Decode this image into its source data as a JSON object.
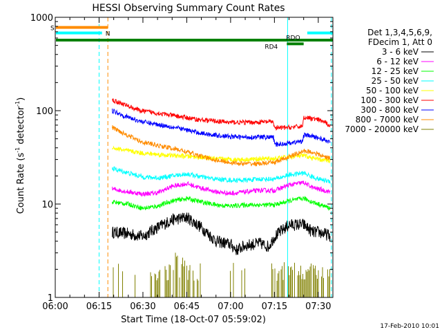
{
  "chart_data": {
    "type": "line",
    "title": "HESSI Observing Summary Count Rates",
    "xlabel": "Start Time (18-Oct-07 05:59:02)",
    "ylabel": "Count Rate (s⁻¹ detector⁻¹)",
    "ylabel_parts": [
      "Count Rate (s",
      "-1",
      " detector",
      "-1",
      ")"
    ],
    "yscale": "log",
    "ylim": [
      1,
      1000
    ],
    "xlim_min": [
      0,
      95
    ],
    "x_ticks": [
      {
        "min": 0,
        "label": "06:00"
      },
      {
        "min": 15,
        "label": "06:15"
      },
      {
        "min": 30,
        "label": "06:30"
      },
      {
        "min": 45,
        "label": "06:45"
      },
      {
        "min": 60,
        "label": "07:00"
      },
      {
        "min": 75,
        "label": "07:15"
      },
      {
        "min": 90,
        "label": "07:30"
      }
    ],
    "y_ticks": [
      {
        "value": 1,
        "label": "1"
      },
      {
        "value": 10,
        "label": "10"
      },
      {
        "value": 100,
        "label": "100"
      },
      {
        "value": 1000,
        "label": "1000"
      }
    ],
    "legend_header": [
      "Det 1,3,4,5,6,9,",
      "FDecim 1, Att 0"
    ],
    "series": [
      {
        "name": "3 - 6 keV",
        "color": "#000000",
        "noise": 0.13,
        "x": [
          19.5,
          25,
          30,
          33,
          40,
          45,
          50,
          55,
          60,
          62,
          65,
          70,
          73,
          75,
          80,
          85,
          88,
          90,
          94
        ],
        "y": [
          5.0,
          4.8,
          4.5,
          5.2,
          6.8,
          7.2,
          5.6,
          4.0,
          3.7,
          3.2,
          3.6,
          3.8,
          3.5,
          4.5,
          6.0,
          6.0,
          5.0,
          5.0,
          4.6
        ]
      },
      {
        "name": "6 - 12 keV",
        "color": "#ff00ff",
        "x": [
          19.5,
          25,
          30,
          35,
          40,
          45,
          50,
          55,
          60,
          65,
          70,
          73,
          75,
          80,
          85,
          88,
          90,
          94
        ],
        "y": [
          14.5,
          13.5,
          12.8,
          13.2,
          15.5,
          16.5,
          14.8,
          13.5,
          13.0,
          13.5,
          14.0,
          14.0,
          14.0,
          16.0,
          17.0,
          15.0,
          14.5,
          13.5
        ]
      },
      {
        "name": "12 - 25 keV",
        "color": "#00ff00",
        "x": [
          19.5,
          25,
          30,
          35,
          40,
          45,
          50,
          55,
          60,
          65,
          70,
          73,
          75,
          80,
          85,
          88,
          90,
          94
        ],
        "y": [
          10.5,
          10.0,
          9.0,
          9.5,
          10.8,
          11.5,
          10.5,
          9.8,
          9.5,
          9.8,
          9.8,
          9.8,
          9.8,
          10.8,
          11.5,
          10.5,
          10.0,
          9.0
        ]
      },
      {
        "name": "25 - 50 keV",
        "color": "#00ffff",
        "x": [
          19.5,
          25,
          30,
          35,
          40,
          45,
          50,
          55,
          60,
          65,
          70,
          73,
          75,
          80,
          85,
          88,
          90,
          94
        ],
        "y": [
          24.0,
          21.5,
          19.5,
          19.0,
          20.0,
          21.0,
          19.5,
          18.5,
          18.0,
          18.0,
          18.5,
          18.5,
          18.5,
          20.5,
          21.5,
          19.5,
          18.5,
          17.5
        ]
      },
      {
        "name": "50 - 100 keV",
        "color": "#ffff00",
        "x": [
          19.5,
          25,
          30,
          35,
          40,
          45,
          50,
          55,
          60,
          65,
          70,
          73,
          75,
          80,
          85,
          88,
          90,
          94
        ],
        "y": [
          40.0,
          37.0,
          35.0,
          34.0,
          33.0,
          32.5,
          31.5,
          30.5,
          30.0,
          30.0,
          30.5,
          30.5,
          30.5,
          32.0,
          33.0,
          31.0,
          30.0,
          29.0
        ]
      },
      {
        "name": "100 - 300 keV",
        "color": "#ff0000",
        "x": [
          19.5,
          24,
          29,
          34,
          39,
          44,
          49,
          54,
          59,
          64,
          69,
          73,
          74.6,
          75,
          80,
          84.5,
          85,
          88,
          91,
          94
        ],
        "y": [
          130,
          115,
          100,
          95,
          90,
          85,
          80,
          78,
          75,
          75,
          75,
          76,
          76,
          65,
          66,
          68,
          85,
          82,
          78,
          70
        ]
      },
      {
        "name": "300 - 800 keV",
        "color": "#0000ff",
        "x": [
          19.5,
          24,
          29,
          34,
          39,
          44,
          49,
          54,
          59,
          64,
          69,
          73,
          74.6,
          75,
          80,
          84.5,
          85,
          88,
          91,
          94
        ],
        "y": [
          100,
          87,
          77,
          72,
          68,
          63,
          58,
          55,
          53,
          52,
          52,
          52,
          52,
          43,
          45,
          47,
          55,
          53,
          50,
          46
        ]
      },
      {
        "name": "800 - 7000 keV",
        "color": "#ff8c00",
        "x": [
          19.5,
          24,
          29,
          34,
          39,
          44,
          49,
          54,
          59,
          64,
          69,
          73,
          75,
          80,
          85,
          88,
          91,
          94
        ],
        "y": [
          66,
          56,
          47,
          43,
          40,
          37,
          33,
          30,
          28,
          27,
          27,
          27.5,
          28,
          32,
          37,
          36,
          33,
          31
        ]
      },
      {
        "name": "7000 - 20000 keV",
        "color": "#808000",
        "noise": 0,
        "x": [
          19.5,
          94
        ],
        "y": [
          1,
          1
        ]
      }
    ],
    "flag_lines": [
      {
        "label": "S",
        "color": "#ff8c00",
        "y": 780,
        "x_start": 0,
        "x_end": 18
      },
      {
        "label": "N",
        "color": "#00ffff",
        "y": 680,
        "x_start": 0,
        "x_end": 16
      },
      {
        "label": "",
        "color": "#00ffff",
        "y": 680,
        "x_start": 86,
        "x_end": 95
      },
      {
        "label": "",
        "color": "#008000",
        "y": 570,
        "x_start": 0,
        "x_end": 95
      },
      {
        "label": "RDO",
        "color": "#008000",
        "y": 520,
        "x_start": 79,
        "x_end": 85
      },
      {
        "label": "RD4",
        "color": "#008000",
        "y": 520,
        "x_start": 0,
        "x_end": 0
      }
    ],
    "vlines": [
      {
        "min": 0,
        "color": "#ff8c00",
        "style": "solid"
      },
      {
        "min": 0,
        "color": "#00ffff",
        "style": "solid"
      },
      {
        "min": 15.0,
        "color": "#00ffff",
        "style": "dashed"
      },
      {
        "min": 18.0,
        "color": "#ff8c00",
        "style": "dashed"
      },
      {
        "min": 79.5,
        "color": "#00ffff",
        "style": "solid"
      },
      {
        "min": 94.5,
        "color": "#00ffff",
        "style": "dashed"
      }
    ],
    "grid": false,
    "legend_placement": "right"
  },
  "footer_timestamp": "17-Feb-2010 10:01"
}
